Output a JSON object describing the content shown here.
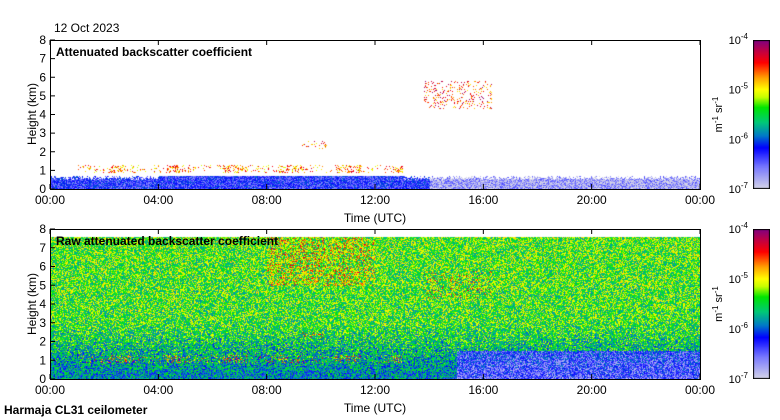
{
  "date": "12 Oct 2023",
  "footer": "Harmaja CL31 ceilometer",
  "colors": {
    "low": "#d8d8e8",
    "blue": "#0000ff",
    "teal": "#00a0a0",
    "green": "#00e000",
    "yellow": "#ffff00",
    "orange": "#ff9900",
    "red": "#ff0000",
    "purple": "#800080"
  },
  "chart_data": [
    {
      "type": "heatmap",
      "title": "Attenuated backscatter coefficient",
      "xlabel": "Time (UTC)",
      "ylabel": "Height (km)",
      "xticks": [
        "00:00",
        "04:00",
        "08:00",
        "12:00",
        "16:00",
        "20:00",
        "00:00"
      ],
      "xlim_hours": [
        0,
        24
      ],
      "yticks": [
        "0",
        "1",
        "2",
        "3",
        "4",
        "5",
        "6",
        "7",
        "8"
      ],
      "ylim": [
        0,
        8
      ],
      "colorbar": {
        "label": "m-1 sr-1",
        "ticks": [
          "10-7",
          "10-6",
          "10-5",
          "10-4"
        ],
        "range_log10": [
          -7,
          -4
        ]
      },
      "features": [
        {
          "desc": "boundary layer",
          "t": [
            0,
            24
          ],
          "h": [
            0,
            0.7
          ],
          "log10": -6.3
        },
        {
          "desc": "low cloud",
          "t": [
            1,
            13
          ],
          "h": [
            0.9,
            1.3
          ],
          "log10": -4.7
        },
        {
          "desc": "cloud",
          "t": [
            9.3,
            10.2
          ],
          "h": [
            2.2,
            2.6
          ],
          "log10": -4.6
        },
        {
          "desc": "cloud",
          "t": [
            13.8,
            16.3
          ],
          "h": [
            4.3,
            5.8
          ],
          "log10": -4.5
        }
      ]
    },
    {
      "type": "heatmap",
      "title": "Raw attenuated backscatter coefficient",
      "xlabel": "Time (UTC)",
      "ylabel": "Height (km)",
      "xticks": [
        "00:00",
        "04:00",
        "08:00",
        "12:00",
        "16:00",
        "20:00",
        "00:00"
      ],
      "xlim_hours": [
        0,
        24
      ],
      "yticks": [
        "0",
        "1",
        "2",
        "3",
        "4",
        "5",
        "6",
        "7",
        "8"
      ],
      "ylim": [
        0,
        8
      ],
      "colorbar": {
        "label": "m-1 sr-1",
        "ticks": [
          "10-7",
          "10-6",
          "10-5",
          "10-4"
        ],
        "range_log10": [
          -7,
          -4
        ]
      }
    }
  ]
}
